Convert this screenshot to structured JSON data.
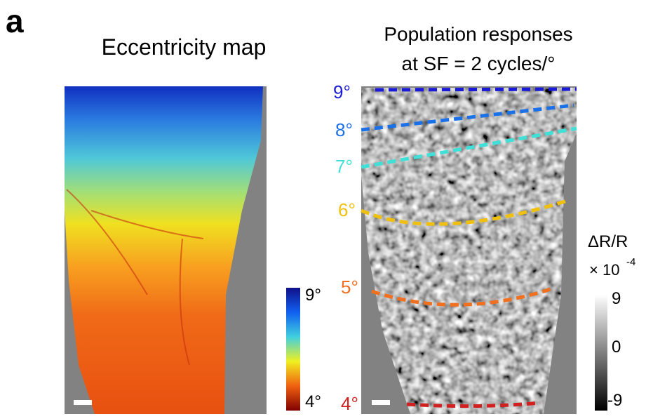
{
  "panel_label": "a",
  "left_panel": {
    "title": "Eccentricity map",
    "colorbar": {
      "max_label": "9°",
      "min_label": "4°"
    }
  },
  "right_panel": {
    "title_lines": [
      "Population responses",
      "at SF = 2 cycles/°"
    ],
    "contour_labels": [
      "9°",
      "8°",
      "7°",
      "6°",
      "5°",
      "4°"
    ],
    "colorbar": {
      "title": "ΔR/R",
      "scale": "× 10",
      "exponent": "-4",
      "ticks": [
        "9",
        "0",
        "-9"
      ]
    }
  }
}
